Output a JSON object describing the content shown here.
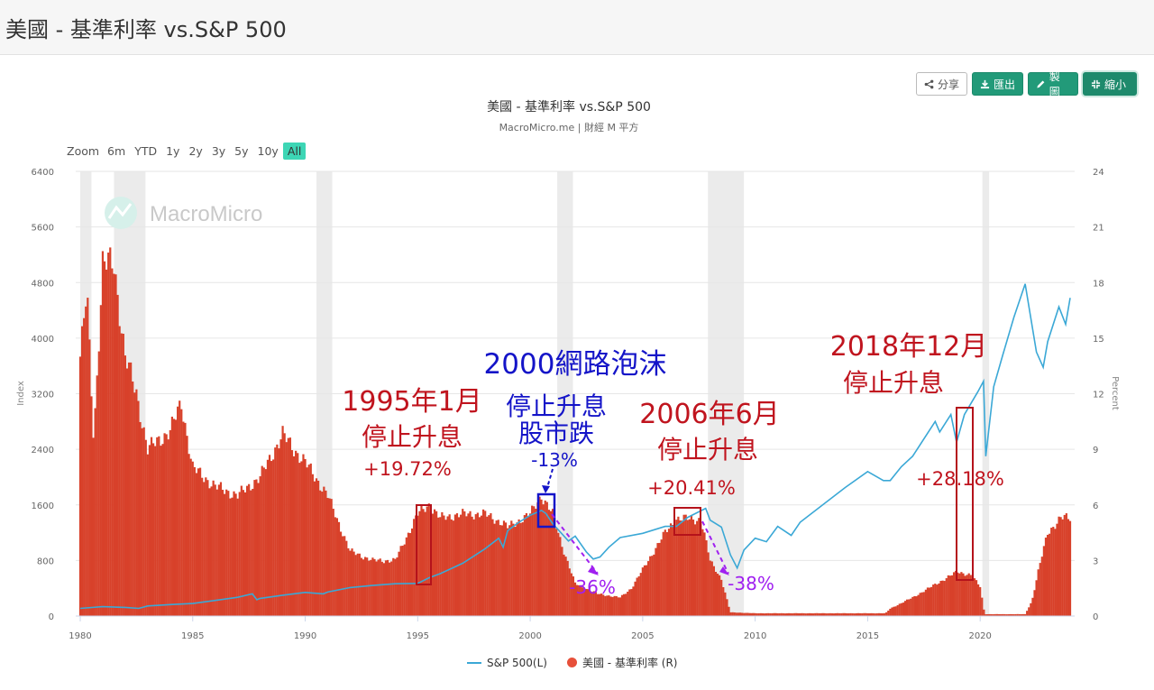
{
  "page": {
    "title": "美國 - 基準利率 vs.S&P 500"
  },
  "toolbar": {
    "share": "分享",
    "export": "匯出",
    "draw": "製圖",
    "shrink": "縮小"
  },
  "chart_title": "美國 - 基準利率 vs.S&P 500",
  "chart_subtitle": "MacroMicro.me | 財經 M 平方",
  "zoom": {
    "label": "Zoom",
    "options": [
      "6m",
      "YTD",
      "1y",
      "2y",
      "3y",
      "5y",
      "10y",
      "All"
    ],
    "active": "All"
  },
  "watermark": "MacroMicro",
  "legend": {
    "sp500": "S&P 500(L)",
    "rate": "美國 - 基準利率 (R)"
  },
  "colors": {
    "sp500": "#3ba8d6",
    "rate": "#d8412a",
    "recession": "#ebebeb",
    "annotation_red": "#c0141e",
    "annotation_blue": "#1414c8",
    "annotation_purple": "#a020f0"
  },
  "chart_data": {
    "type": "line+bar",
    "x_range": [
      1979.8,
      2024.2
    ],
    "x_ticks": [
      "1980",
      "1985",
      "1990",
      "1995",
      "2000",
      "2005",
      "2010",
      "2015",
      "2020"
    ],
    "left_axis": {
      "label": "Index",
      "range": [
        0,
        6400
      ],
      "ticks": [
        "0",
        "800",
        "1600",
        "2400",
        "3200",
        "4000",
        "4800",
        "5600",
        "6400"
      ]
    },
    "right_axis": {
      "label": "Percent",
      "range": [
        0,
        24
      ],
      "ticks": [
        "0",
        "3",
        "6",
        "9",
        "12",
        "15",
        "18",
        "21",
        "24"
      ]
    },
    "recessions": [
      [
        1980.0,
        1980.5
      ],
      [
        1981.5,
        1982.9
      ],
      [
        1990.5,
        1991.2
      ],
      [
        2001.2,
        2001.9
      ],
      [
        2007.9,
        2009.5
      ],
      [
        2020.1,
        2020.4
      ]
    ],
    "series": [
      {
        "name": "S&P 500(L)",
        "type": "line",
        "axis": "left",
        "points": [
          [
            1980.0,
            110
          ],
          [
            1981.0,
            135
          ],
          [
            1982.0,
            125
          ],
          [
            1982.6,
            110
          ],
          [
            1983.0,
            145
          ],
          [
            1984.0,
            165
          ],
          [
            1985.0,
            180
          ],
          [
            1986.0,
            225
          ],
          [
            1987.0,
            270
          ],
          [
            1987.65,
            320
          ],
          [
            1987.85,
            235
          ],
          [
            1988.0,
            255
          ],
          [
            1989.0,
            300
          ],
          [
            1990.0,
            340
          ],
          [
            1990.8,
            320
          ],
          [
            1991.0,
            345
          ],
          [
            1992.0,
            410
          ],
          [
            1993.0,
            440
          ],
          [
            1994.0,
            465
          ],
          [
            1995.0,
            470
          ],
          [
            1995.5,
            550
          ],
          [
            1996.0,
            610
          ],
          [
            1997.0,
            760
          ],
          [
            1998.0,
            970
          ],
          [
            1998.6,
            1120
          ],
          [
            1998.8,
            990
          ],
          [
            1999.0,
            1230
          ],
          [
            1999.5,
            1350
          ],
          [
            2000.0,
            1450
          ],
          [
            2000.5,
            1520
          ],
          [
            2000.7,
            1475
          ],
          [
            2001.0,
            1330
          ],
          [
            2001.7,
            1080
          ],
          [
            2002.0,
            1150
          ],
          [
            2002.5,
            920
          ],
          [
            2002.8,
            820
          ],
          [
            2003.1,
            850
          ],
          [
            2003.5,
            990
          ],
          [
            2004.0,
            1130
          ],
          [
            2005.0,
            1190
          ],
          [
            2006.0,
            1290
          ],
          [
            2006.5,
            1290
          ],
          [
            2007.0,
            1420
          ],
          [
            2007.8,
            1550
          ],
          [
            2008.0,
            1380
          ],
          [
            2008.5,
            1280
          ],
          [
            2008.9,
            880
          ],
          [
            2009.2,
            690
          ],
          [
            2009.5,
            950
          ],
          [
            2010.0,
            1120
          ],
          [
            2010.5,
            1070
          ],
          [
            2011.0,
            1290
          ],
          [
            2011.6,
            1160
          ],
          [
            2012.0,
            1350
          ],
          [
            2013.0,
            1600
          ],
          [
            2014.0,
            1850
          ],
          [
            2015.0,
            2080
          ],
          [
            2015.7,
            1950
          ],
          [
            2016.0,
            1950
          ],
          [
            2016.5,
            2150
          ],
          [
            2017.0,
            2300
          ],
          [
            2018.0,
            2800
          ],
          [
            2018.2,
            2650
          ],
          [
            2018.7,
            2900
          ],
          [
            2018.95,
            2500
          ],
          [
            2019.3,
            2900
          ],
          [
            2019.9,
            3230
          ],
          [
            2020.15,
            3380
          ],
          [
            2020.25,
            2300
          ],
          [
            2020.6,
            3300
          ],
          [
            2021.0,
            3750
          ],
          [
            2021.5,
            4300
          ],
          [
            2022.0,
            4780
          ],
          [
            2022.5,
            3800
          ],
          [
            2022.8,
            3580
          ],
          [
            2023.0,
            3950
          ],
          [
            2023.5,
            4450
          ],
          [
            2023.8,
            4200
          ],
          [
            2024.0,
            4580
          ]
        ]
      },
      {
        "name": "美國 - 基準利率 (R)",
        "type": "bar",
        "axis": "right",
        "points": [
          [
            1980.0,
            14
          ],
          [
            1980.3,
            17.5
          ],
          [
            1980.6,
            9.5
          ],
          [
            1981.0,
            19
          ],
          [
            1981.5,
            19
          ],
          [
            1982.0,
            14
          ],
          [
            1982.5,
            12
          ],
          [
            1983.0,
            9
          ],
          [
            1984.0,
            10
          ],
          [
            1984.5,
            11.5
          ],
          [
            1985.0,
            8
          ],
          [
            1986.0,
            7
          ],
          [
            1987.0,
            6.5
          ],
          [
            1988.0,
            7.5
          ],
          [
            1989.0,
            9.8
          ],
          [
            1989.5,
            9
          ],
          [
            1990.0,
            8.3
          ],
          [
            1991.0,
            6.5
          ],
          [
            1992.0,
            3.5
          ],
          [
            1993.0,
            3
          ],
          [
            1994.0,
            3
          ],
          [
            1995.0,
            5.5
          ],
          [
            1995.5,
            6
          ],
          [
            1996.0,
            5.3
          ],
          [
            1997.0,
            5.5
          ],
          [
            1998.0,
            5.5
          ],
          [
            1998.8,
            5
          ],
          [
            1999.0,
            4.8
          ],
          [
            2000.0,
            5.5
          ],
          [
            2000.5,
            6.5
          ],
          [
            2001.0,
            5.5
          ],
          [
            2001.5,
            3.5
          ],
          [
            2002.0,
            1.75
          ],
          [
            2003.0,
            1.2
          ],
          [
            2004.0,
            1.0
          ],
          [
            2004.5,
            1.5
          ],
          [
            2005.0,
            2.5
          ],
          [
            2006.0,
            4.5
          ],
          [
            2006.5,
            5.25
          ],
          [
            2007.0,
            5.25
          ],
          [
            2007.6,
            5.2
          ],
          [
            2008.0,
            3
          ],
          [
            2008.5,
            2
          ],
          [
            2008.9,
            0.2
          ],
          [
            2010.0,
            0.15
          ],
          [
            2015.8,
            0.15
          ],
          [
            2016.0,
            0.4
          ],
          [
            2017.0,
            1.0
          ],
          [
            2018.0,
            1.7
          ],
          [
            2019.0,
            2.4
          ],
          [
            2019.6,
            2.2
          ],
          [
            2020.0,
            1.6
          ],
          [
            2020.2,
            0.1
          ],
          [
            2022.0,
            0.1
          ],
          [
            2022.3,
            0.8
          ],
          [
            2022.6,
            2.5
          ],
          [
            2023.0,
            4.5
          ],
          [
            2023.6,
            5.3
          ],
          [
            2024.0,
            5.3
          ]
        ]
      }
    ],
    "annotations": [
      {
        "text": "1995年1月",
        "color": "red"
      },
      {
        "text": "停止升息",
        "color": "red"
      },
      {
        "text": "+19.72%",
        "color": "red"
      },
      {
        "text": "2000網路泡沫",
        "color": "blue"
      },
      {
        "text": "停止升息",
        "color": "blue"
      },
      {
        "text": "股市跌",
        "color": "blue"
      },
      {
        "text": "-13%",
        "color": "blue"
      },
      {
        "text": "2006年6月",
        "color": "red"
      },
      {
        "text": "停止升息",
        "color": "red"
      },
      {
        "text": "+20.41%",
        "color": "red"
      },
      {
        "text": "2018年12月",
        "color": "red"
      },
      {
        "text": "停止升息",
        "color": "red"
      },
      {
        "text": "+28.18%",
        "color": "red"
      },
      {
        "text": "-36%",
        "color": "purple"
      },
      {
        "text": "-38%",
        "color": "purple"
      }
    ]
  }
}
